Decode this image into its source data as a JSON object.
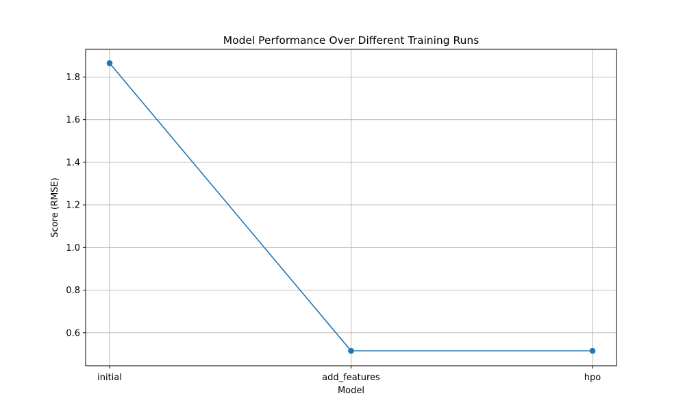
{
  "chart_data": {
    "type": "line",
    "title": "Model Performance Over Different Training Runs",
    "xlabel": "Model",
    "ylabel": "Score (RMSE)",
    "categories": [
      "initial",
      "add_features",
      "hpo"
    ],
    "series": [
      {
        "values": [
          1.865,
          0.515,
          0.515
        ],
        "color": "#1f77b4",
        "marker": "circle"
      }
    ],
    "ylim": [
      0.445,
      1.93
    ],
    "yticks": [
      0.6,
      0.8,
      1.0,
      1.2,
      1.4,
      1.6,
      1.8
    ],
    "ytick_labels": [
      "0.6",
      "0.8",
      "1.0",
      "1.2",
      "1.4",
      "1.6",
      "1.8"
    ],
    "grid": true,
    "grid_color": "#b0b0b0",
    "legend": false
  }
}
